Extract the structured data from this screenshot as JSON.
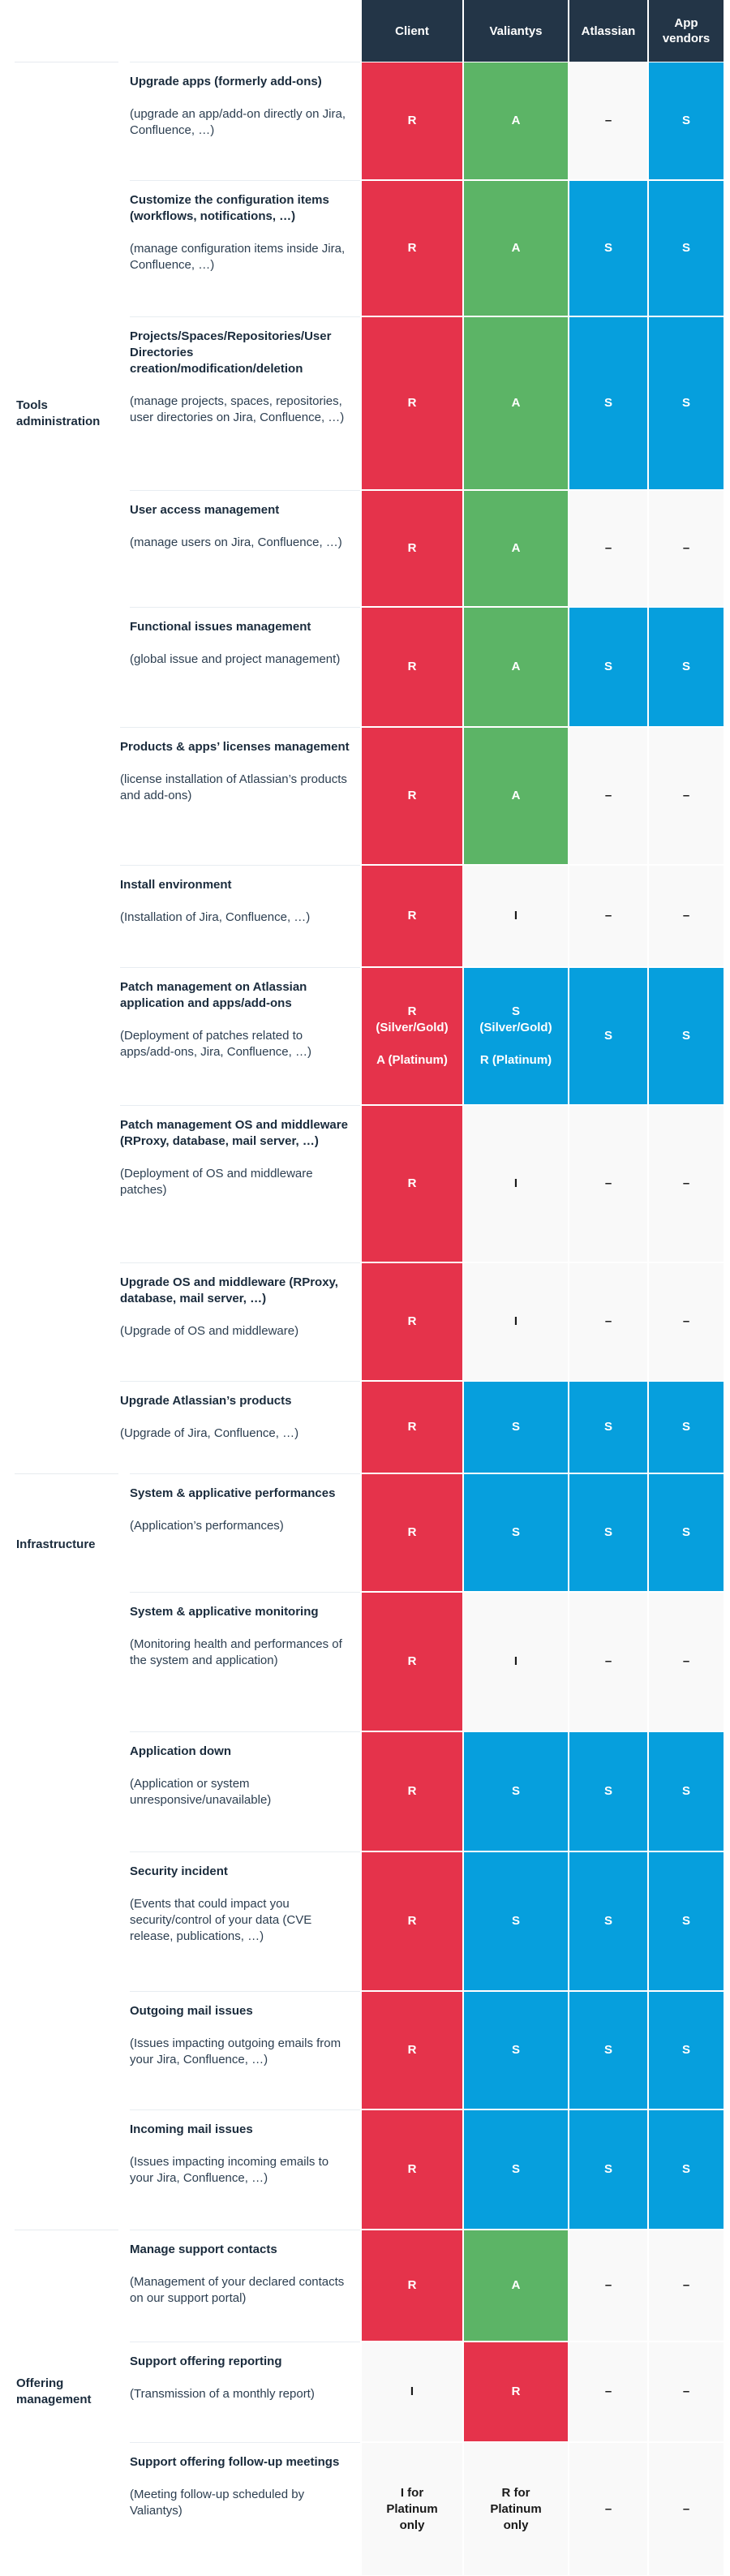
{
  "headers": [
    "Client",
    "Valiantys",
    "Atlassian",
    "App\nvendors"
  ],
  "colors": {
    "R": "#e5334b",
    "A": "#5cb466",
    "S": "#069fdd",
    "neutral": "#f9f9f9",
    "header": "#233547"
  },
  "categories": [
    {
      "id": "tools",
      "label": "Tools administration"
    },
    {
      "id": "infra",
      "label": "Infrastructure"
    },
    {
      "id": "offering",
      "label": "Offering management"
    }
  ],
  "rows": [
    {
      "title": "Upgrade apps (formerly add-ons)",
      "desc": "(upgrade an app/add-on directly on Jira, Confluence, …)",
      "cells": [
        {
          "v": "R",
          "k": "R"
        },
        {
          "v": "A",
          "k": "A"
        },
        {
          "v": "–",
          "k": "N"
        },
        {
          "v": "S",
          "k": "S"
        }
      ]
    },
    {
      "title": "Customize the configuration items (workflows, notifications, …)",
      "desc": "(manage configuration items inside Jira, Confluence, …)",
      "cells": [
        {
          "v": "R",
          "k": "R"
        },
        {
          "v": "A",
          "k": "A"
        },
        {
          "v": "S",
          "k": "S"
        },
        {
          "v": "S",
          "k": "S"
        }
      ]
    },
    {
      "title": "Projects/Spaces/Repositories/User Directories creation/modification/deletion",
      "desc": "(manage projects, spaces, repositories, user directories on Jira, Confluence, …)",
      "cells": [
        {
          "v": "R",
          "k": "R"
        },
        {
          "v": "A",
          "k": "A"
        },
        {
          "v": "S",
          "k": "S"
        },
        {
          "v": "S",
          "k": "S"
        }
      ]
    },
    {
      "title": "User access management",
      "desc": "(manage users on Jira, Confluence, …)",
      "cells": [
        {
          "v": "R",
          "k": "R"
        },
        {
          "v": "A",
          "k": "A"
        },
        {
          "v": "–",
          "k": "N"
        },
        {
          "v": "–",
          "k": "N"
        }
      ]
    },
    {
      "title": "Functional issues management",
      "desc": "(global issue and project management)",
      "cells": [
        {
          "v": "R",
          "k": "R"
        },
        {
          "v": "A",
          "k": "A"
        },
        {
          "v": "S",
          "k": "S"
        },
        {
          "v": "S",
          "k": "S"
        }
      ]
    },
    {
      "title": "Products & apps’ licenses management",
      "desc": "(license installation of Atlassian’s products and add-ons)",
      "cells": [
        {
          "v": "R",
          "k": "R"
        },
        {
          "v": "A",
          "k": "A"
        },
        {
          "v": "–",
          "k": "N"
        },
        {
          "v": "–",
          "k": "N"
        }
      ]
    },
    {
      "title": "Install environment",
      "desc": "(Installation of Jira, Confluence, …)",
      "cells": [
        {
          "v": "R",
          "k": "R"
        },
        {
          "v": "I",
          "k": "N"
        },
        {
          "v": "–",
          "k": "N"
        },
        {
          "v": "–",
          "k": "N"
        }
      ]
    },
    {
      "title": "Patch management on Atlassian application and apps/add-ons",
      "desc": "(Deployment of patches related to apps/add-ons, Jira, Confluence, …)",
      "cells": [
        {
          "v": "R\n(Silver/Gold)\n\nA (Platinum)",
          "k": "R"
        },
        {
          "v": "S\n(Silver/Gold)\n\nR (Platinum)",
          "k": "S"
        },
        {
          "v": "S",
          "k": "S"
        },
        {
          "v": "S",
          "k": "S"
        }
      ]
    },
    {
      "title": "Patch management OS and middleware (RProxy, database, mail server, …)",
      "desc": "(Deployment of OS and middleware patches)",
      "cells": [
        {
          "v": "R",
          "k": "R"
        },
        {
          "v": "I",
          "k": "N"
        },
        {
          "v": "–",
          "k": "N"
        },
        {
          "v": "–",
          "k": "N"
        }
      ]
    },
    {
      "title": "Upgrade OS and middleware (RProxy, database, mail server, …)",
      "desc": "(Upgrade of OS and middleware)",
      "cells": [
        {
          "v": "R",
          "k": "R"
        },
        {
          "v": "I",
          "k": "N"
        },
        {
          "v": "–",
          "k": "N"
        },
        {
          "v": "–",
          "k": "N"
        }
      ]
    },
    {
      "title": "Upgrade Atlassian’s products",
      "desc": "(Upgrade of Jira, Confluence, …)",
      "cells": [
        {
          "v": "R",
          "k": "R"
        },
        {
          "v": "S",
          "k": "S"
        },
        {
          "v": "S",
          "k": "S"
        },
        {
          "v": "S",
          "k": "S"
        }
      ]
    },
    {
      "title": "System & applicative performances",
      "desc": "(Application’s performances)",
      "cells": [
        {
          "v": "R",
          "k": "R"
        },
        {
          "v": "S",
          "k": "S"
        },
        {
          "v": "S",
          "k": "S"
        },
        {
          "v": "S",
          "k": "S"
        }
      ]
    },
    {
      "title": "System & applicative monitoring",
      "desc": "(Monitoring health and performances of the system and application)",
      "cells": [
        {
          "v": "R",
          "k": "R"
        },
        {
          "v": "I",
          "k": "N"
        },
        {
          "v": "–",
          "k": "N"
        },
        {
          "v": "–",
          "k": "N"
        }
      ]
    },
    {
      "title": "Application down",
      "desc": "(Application or system unresponsive/unavailable)",
      "cells": [
        {
          "v": "R",
          "k": "R"
        },
        {
          "v": "S",
          "k": "S"
        },
        {
          "v": "S",
          "k": "S"
        },
        {
          "v": "S",
          "k": "S"
        }
      ]
    },
    {
      "title": "Security incident",
      "desc": "(Events that could impact you security/control of your data (CVE release, publications, …)",
      "cells": [
        {
          "v": "R",
          "k": "R"
        },
        {
          "v": "S",
          "k": "S"
        },
        {
          "v": "S",
          "k": "S"
        },
        {
          "v": "S",
          "k": "S"
        }
      ]
    },
    {
      "title": "Outgoing mail issues",
      "desc": "(Issues impacting outgoing emails from your Jira, Confluence, …)",
      "cells": [
        {
          "v": "R",
          "k": "R"
        },
        {
          "v": "S",
          "k": "S"
        },
        {
          "v": "S",
          "k": "S"
        },
        {
          "v": "S",
          "k": "S"
        }
      ]
    },
    {
      "title": "Incoming mail issues",
      "desc": "(Issues impacting incoming emails to your Jira, Confluence, …)",
      "cells": [
        {
          "v": "R",
          "k": "R"
        },
        {
          "v": "S",
          "k": "S"
        },
        {
          "v": "S",
          "k": "S"
        },
        {
          "v": "S",
          "k": "S"
        }
      ]
    },
    {
      "title": "Manage support contacts",
      "desc": "(Management of your declared contacts on our support portal)",
      "cells": [
        {
          "v": "R",
          "k": "R"
        },
        {
          "v": "A",
          "k": "A"
        },
        {
          "v": "–",
          "k": "N"
        },
        {
          "v": "–",
          "k": "N"
        }
      ]
    },
    {
      "title": "Support offering reporting",
      "desc": "(Transmission of a monthly report)",
      "cells": [
        {
          "v": "I",
          "k": "N"
        },
        {
          "v": "R",
          "k": "R"
        },
        {
          "v": "–",
          "k": "N"
        },
        {
          "v": "–",
          "k": "N"
        }
      ]
    },
    {
      "title": "Support offering follow-up meetings",
      "desc": "(Meeting follow-up scheduled by Valiantys)",
      "cells": [
        {
          "v": "I for\nPlatinum\nonly",
          "k": "N"
        },
        {
          "v": "R for\nPlatinum\nonly",
          "k": "N"
        },
        {
          "v": "–",
          "k": "N"
        },
        {
          "v": "–",
          "k": "N"
        }
      ]
    }
  ]
}
